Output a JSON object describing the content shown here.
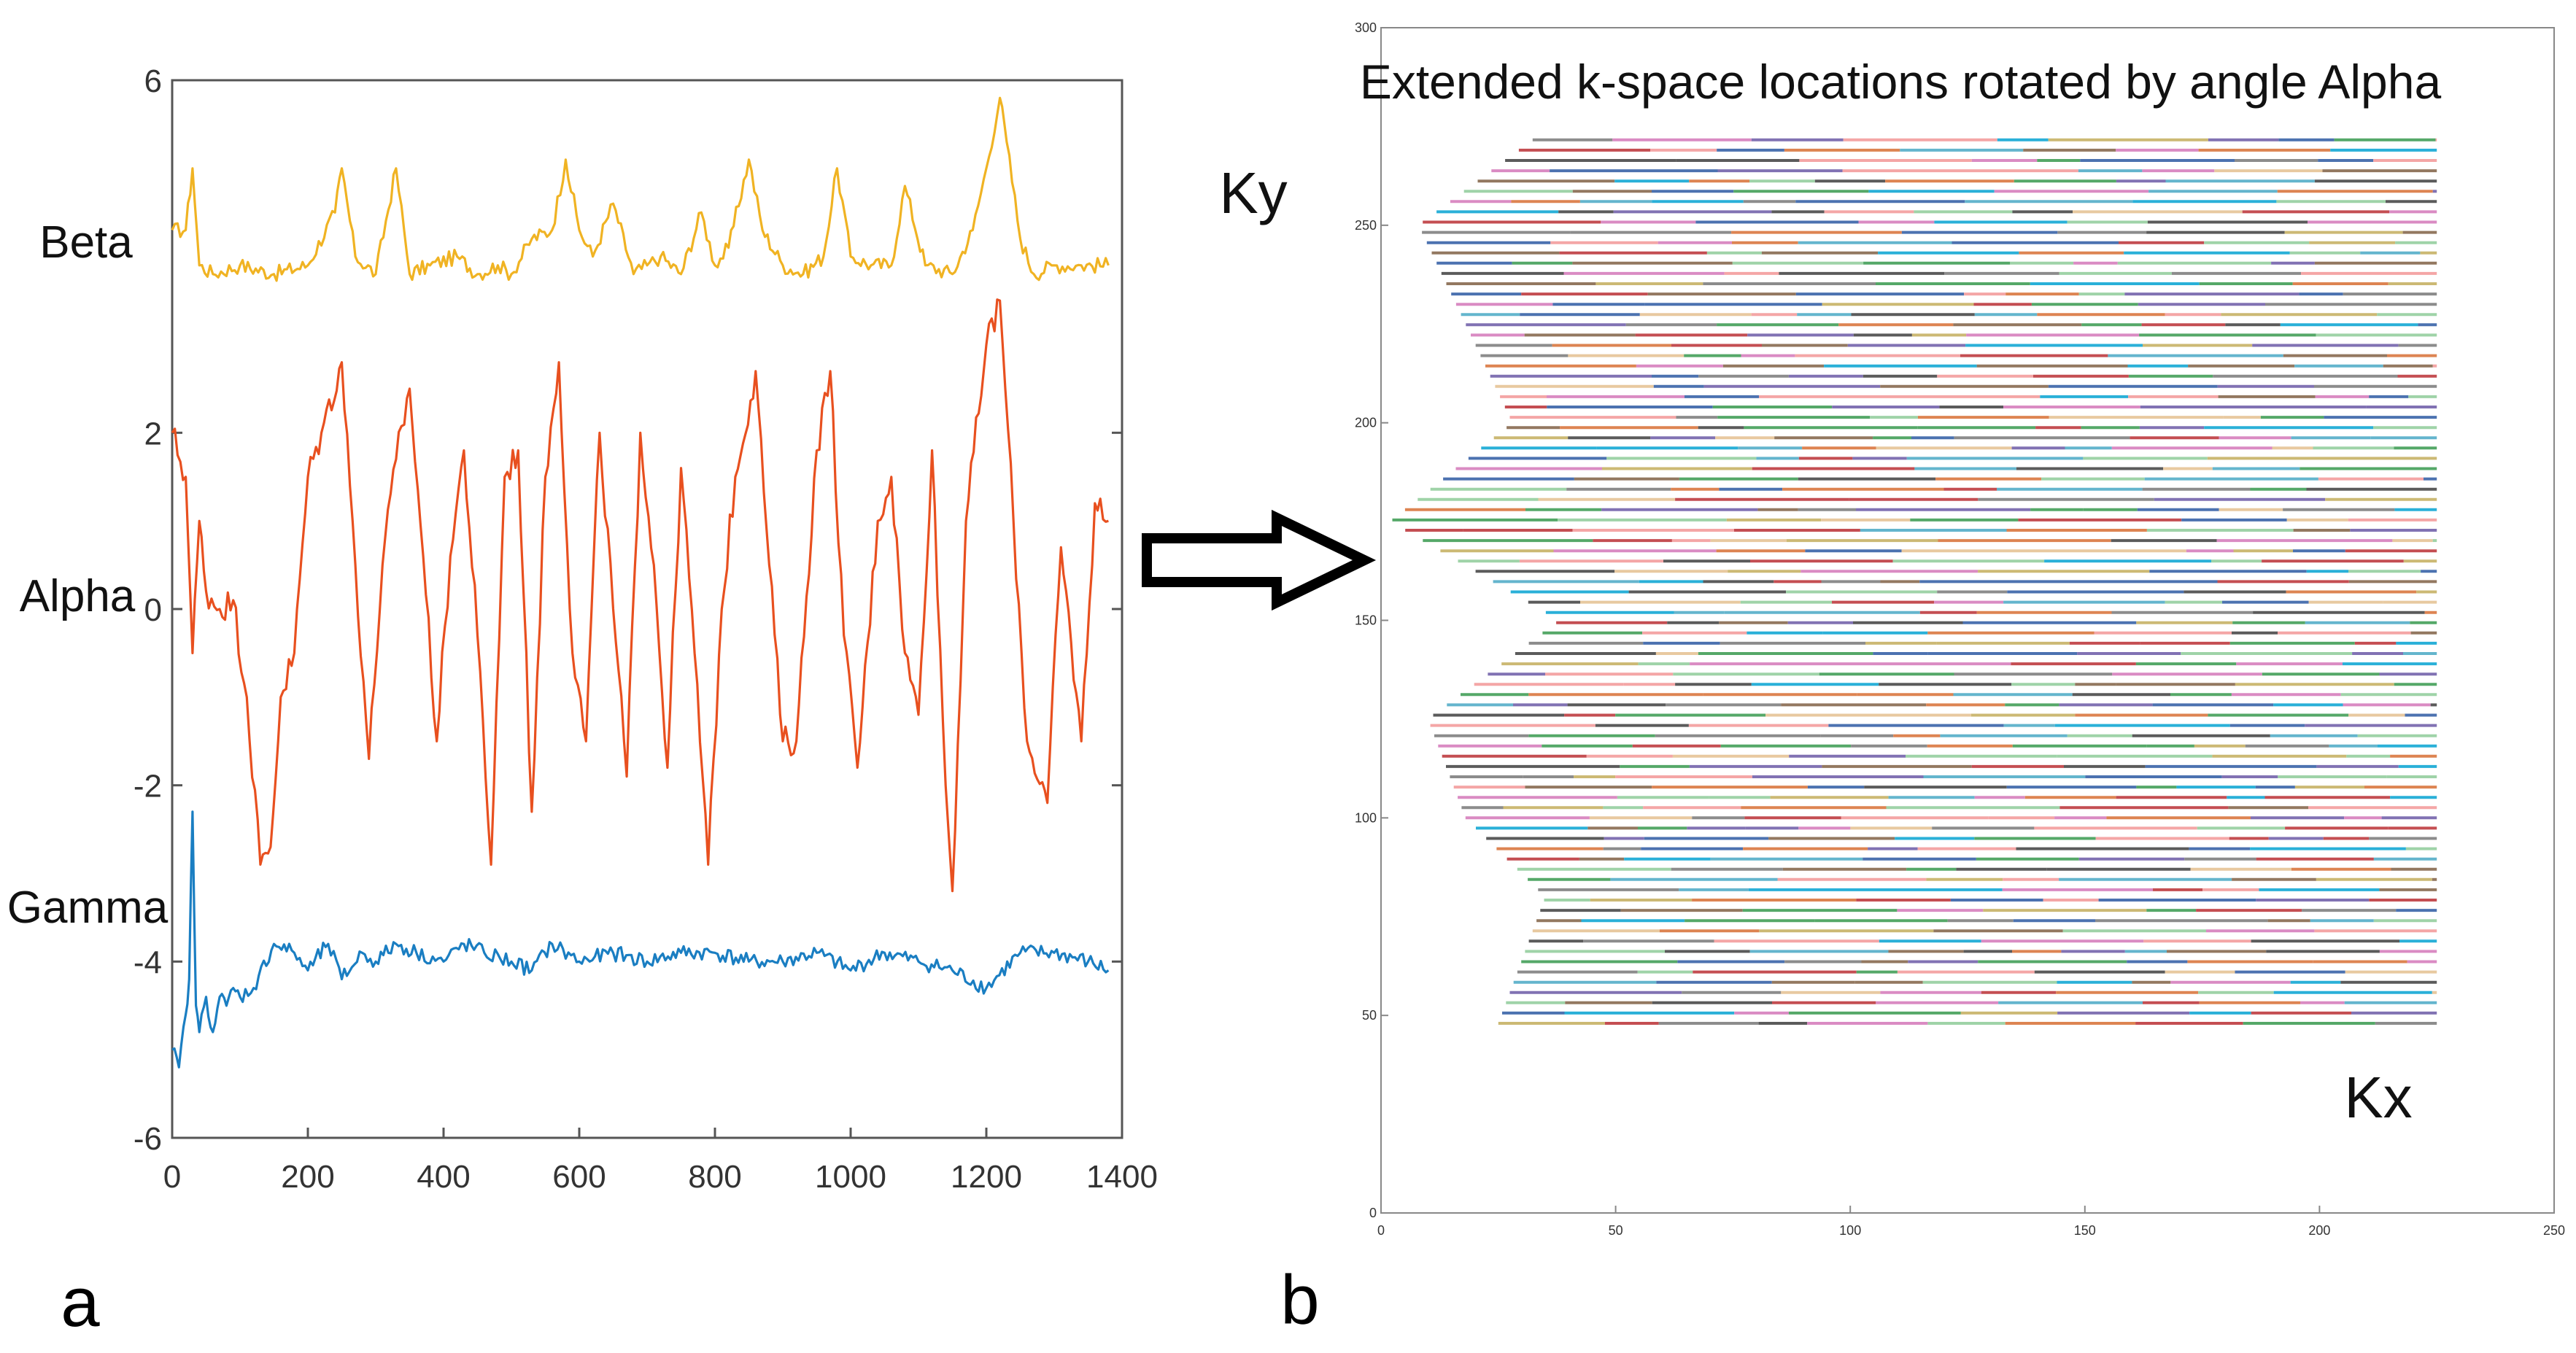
{
  "chart_data": [
    {
      "panel_label": "a",
      "type": "line",
      "xlim": [
        0,
        1400
      ],
      "ylim": [
        -6,
        6
      ],
      "xticks": [
        0,
        200,
        400,
        600,
        800,
        1000,
        1200,
        1400
      ],
      "yticks": [
        6,
        2,
        0,
        -2,
        -4,
        -6
      ],
      "series": [
        {
          "name": "Beta",
          "color": "#f0b323",
          "x": [
            0,
            20,
            30,
            40,
            60,
            100,
            150,
            200,
            240,
            250,
            270,
            300,
            330,
            350,
            380,
            420,
            450,
            480,
            500,
            530,
            560,
            580,
            600,
            620,
            650,
            680,
            700,
            720,
            750,
            780,
            800,
            820,
            850,
            870,
            900,
            930,
            960,
            980,
            1000,
            1030,
            1060,
            1080,
            1110,
            1150,
            1180,
            1200,
            1220,
            1230,
            1250,
            1270,
            1300,
            1340,
            1380
          ],
          "values": [
            4.3,
            4.3,
            5.0,
            3.9,
            3.8,
            3.9,
            3.8,
            3.9,
            4.5,
            5.0,
            4.0,
            3.8,
            5.0,
            3.8,
            3.9,
            4.0,
            3.8,
            3.9,
            3.8,
            4.2,
            4.3,
            5.1,
            4.3,
            4.0,
            4.6,
            3.8,
            3.9,
            4.0,
            3.8,
            4.5,
            3.9,
            4.1,
            5.1,
            4.3,
            3.9,
            3.8,
            4.0,
            5.0,
            4.0,
            3.9,
            3.9,
            4.8,
            3.9,
            3.8,
            4.3,
            5.0,
            5.8,
            5.3,
            4.2,
            3.8,
            3.9,
            3.9,
            3.9
          ]
        },
        {
          "name": "Alpha",
          "color": "#e8501f",
          "x": [
            0,
            20,
            30,
            40,
            50,
            70,
            90,
            110,
            130,
            145,
            160,
            180,
            200,
            220,
            250,
            270,
            290,
            310,
            330,
            350,
            370,
            390,
            410,
            430,
            450,
            470,
            490,
            510,
            530,
            550,
            570,
            590,
            610,
            630,
            650,
            670,
            690,
            710,
            730,
            750,
            770,
            790,
            810,
            830,
            860,
            880,
            900,
            920,
            950,
            970,
            990,
            1010,
            1040,
            1060,
            1080,
            1100,
            1120,
            1140,
            1150,
            1170,
            1200,
            1220,
            1240,
            1260,
            1290,
            1310,
            1340,
            1360,
            1380
          ],
          "values": [
            2.0,
            1.5,
            -0.5,
            1.0,
            0.2,
            0.0,
            0.1,
            -1.0,
            -2.9,
            -2.7,
            -1.0,
            -0.5,
            1.5,
            2.0,
            2.8,
            0.5,
            -1.7,
            0.5,
            1.7,
            2.5,
            0.6,
            -1.5,
            0.6,
            1.8,
            -0.3,
            -2.9,
            1.5,
            1.8,
            -2.3,
            1.5,
            2.8,
            -0.5,
            -1.5,
            2.0,
            0.0,
            -1.9,
            2.0,
            0.5,
            -1.8,
            1.6,
            -0.5,
            -2.9,
            0.0,
            1.5,
            2.7,
            0.5,
            -1.5,
            -1.5,
            1.8,
            2.7,
            -0.3,
            -1.8,
            1.0,
            1.5,
            -0.5,
            -1.2,
            1.8,
            -2.0,
            -3.2,
            1.0,
            3.0,
            3.5,
            1.0,
            -1.5,
            -2.2,
            0.7,
            -1.5,
            1.2,
            1.0
          ]
        },
        {
          "name": "Gamma",
          "color": "#1a7ec2",
          "x": [
            0,
            10,
            20,
            25,
            30,
            35,
            40,
            50,
            60,
            70,
            80,
            90,
            100,
            120,
            150,
            180,
            200,
            230,
            250,
            280,
            300,
            330,
            360,
            400,
            430,
            460,
            500,
            530,
            560,
            600,
            650,
            700,
            750,
            800,
            850,
            900,
            950,
            1000,
            1050,
            1100,
            1150,
            1200,
            1250,
            1300,
            1350,
            1380
          ],
          "values": [
            -5.0,
            -5.2,
            -4.6,
            -4.2,
            -2.3,
            -4.5,
            -4.8,
            -4.4,
            -4.8,
            -4.4,
            -4.5,
            -4.3,
            -4.4,
            -4.3,
            -3.8,
            -3.9,
            -4.1,
            -3.8,
            -4.2,
            -3.9,
            -4.0,
            -3.8,
            -3.9,
            -4.0,
            -3.8,
            -3.9,
            -4.0,
            -4.1,
            -3.8,
            -4.0,
            -3.9,
            -4.0,
            -3.9,
            -3.9,
            -4.0,
            -4.0,
            -3.9,
            -4.1,
            -3.9,
            -4.0,
            -4.1,
            -4.3,
            -3.9,
            -3.9,
            -4.0,
            -4.1
          ]
        }
      ]
    },
    {
      "panel_label": "b",
      "type": "line",
      "title": "Extended k-space locations rotated by angle Alpha",
      "xlabel": "Kx",
      "ylabel": "Ky",
      "xlim": [
        0,
        250
      ],
      "ylim": [
        0,
        300
      ],
      "xticks": [
        0,
        50,
        100,
        150,
        200,
        250
      ],
      "yticks": [
        0,
        50,
        100,
        150,
        200,
        250,
        300
      ],
      "ky_range": [
        48,
        274
      ],
      "kx_line_end": 225,
      "kx_start_envelope": {
        "ky": [
          48,
          80,
          100,
          125,
          150,
          175,
          200,
          225,
          250,
          274
        ],
        "kx": [
          25,
          35,
          18,
          10,
          38,
          2,
          28,
          18,
          8,
          35
        ]
      },
      "palette": [
        "#4c72b0",
        "#dd8452",
        "#55a868",
        "#c44e52",
        "#8172b3",
        "#937860",
        "#da8bc3",
        "#8c8c8c",
        "#ccb974",
        "#64b5cd",
        "#f4a6a6",
        "#9fd3a8",
        "#e8c9a0",
        "#5b5b5b",
        "#2ab0d8"
      ]
    }
  ]
}
